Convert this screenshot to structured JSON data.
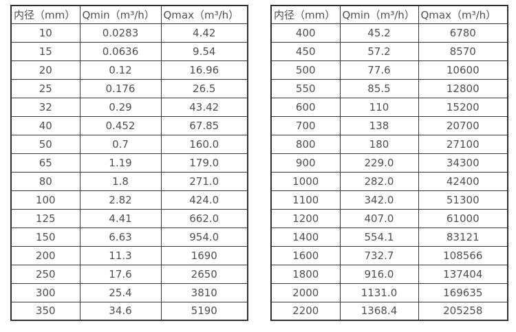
{
  "page": {
    "background_color": "#ffffff",
    "text_color": "#4f4f4f",
    "border_color": "#383838"
  },
  "tables": [
    {
      "name": "flow-table-small-diameters",
      "headers": [
        "内径（mm）",
        "Qmin（m³/h）",
        "Qmax（m³/h）"
      ],
      "rows": [
        [
          "10",
          "0.0283",
          "4.42"
        ],
        [
          "15",
          "0.0636",
          "9.54"
        ],
        [
          "20",
          "0.12",
          "16.96"
        ],
        [
          "25",
          "0.176",
          "26.5"
        ],
        [
          "32",
          "0.29",
          "43.42"
        ],
        [
          "40",
          "0.452",
          "67.85"
        ],
        [
          "50",
          "0.7",
          "160.0"
        ],
        [
          "65",
          "1.19",
          "179.0"
        ],
        [
          "80",
          "1.8",
          "271.0"
        ],
        [
          "100",
          "2.82",
          "424.0"
        ],
        [
          "125",
          "4.41",
          "662.0"
        ],
        [
          "150",
          "6.63",
          "954.0"
        ],
        [
          "200",
          "11.3",
          "1690"
        ],
        [
          "250",
          "17.6",
          "2650"
        ],
        [
          "300",
          "25.4",
          "3810"
        ],
        [
          "350",
          "34.6",
          "5190"
        ]
      ]
    },
    {
      "name": "flow-table-large-diameters",
      "headers": [
        "内径（mm）",
        "Qmin（m³/h）",
        "Qmax（m³/h）"
      ],
      "rows": [
        [
          "400",
          "45.2",
          "6780"
        ],
        [
          "450",
          "57.2",
          "8570"
        ],
        [
          "500",
          "77.6",
          "10600"
        ],
        [
          "550",
          "85.5",
          "12800"
        ],
        [
          "600",
          "110",
          "15200"
        ],
        [
          "700",
          "138",
          "20700"
        ],
        [
          "800",
          "180",
          "27100"
        ],
        [
          "900",
          "229.0",
          "34300"
        ],
        [
          "1000",
          "282.0",
          "42400"
        ],
        [
          "1100",
          "342.0",
          "51300"
        ],
        [
          "1200",
          "407.0",
          "61000"
        ],
        [
          "1400",
          "554.1",
          "83121"
        ],
        [
          "1600",
          "732.7",
          "108566"
        ],
        [
          "1800",
          "916.0",
          "137404"
        ],
        [
          "2000",
          "1131.0",
          "169635"
        ],
        [
          "2200",
          "1368.4",
          "205258"
        ]
      ]
    }
  ]
}
